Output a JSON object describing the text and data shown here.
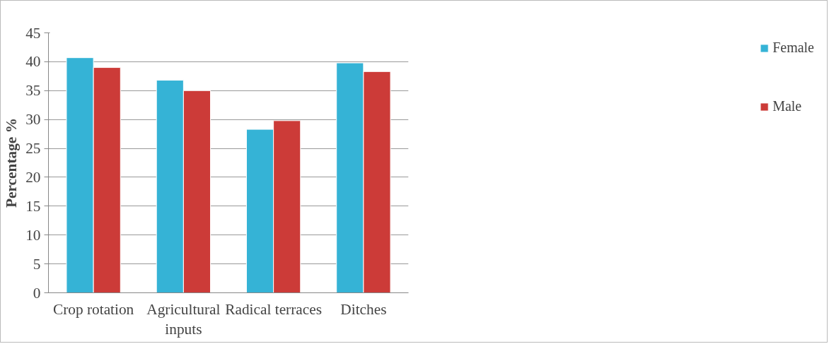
{
  "chart_data": {
    "type": "bar",
    "ylabel": "Percentage %",
    "categories": [
      "Crop rotation",
      "Agricultural inputs",
      "Radical terraces",
      "Ditches"
    ],
    "series": [
      {
        "name": "Female",
        "color": "#35b3d6",
        "values": [
          40.7,
          36.8,
          28.3,
          39.8
        ]
      },
      {
        "name": "Male",
        "color": "#cc3b38",
        "values": [
          39.0,
          35.0,
          29.8,
          38.3
        ]
      }
    ],
    "ylim": [
      0,
      45
    ],
    "yticks": [
      0,
      5,
      10,
      15,
      20,
      25,
      30,
      35,
      40,
      45
    ],
    "grid": "y",
    "legend": "right"
  }
}
